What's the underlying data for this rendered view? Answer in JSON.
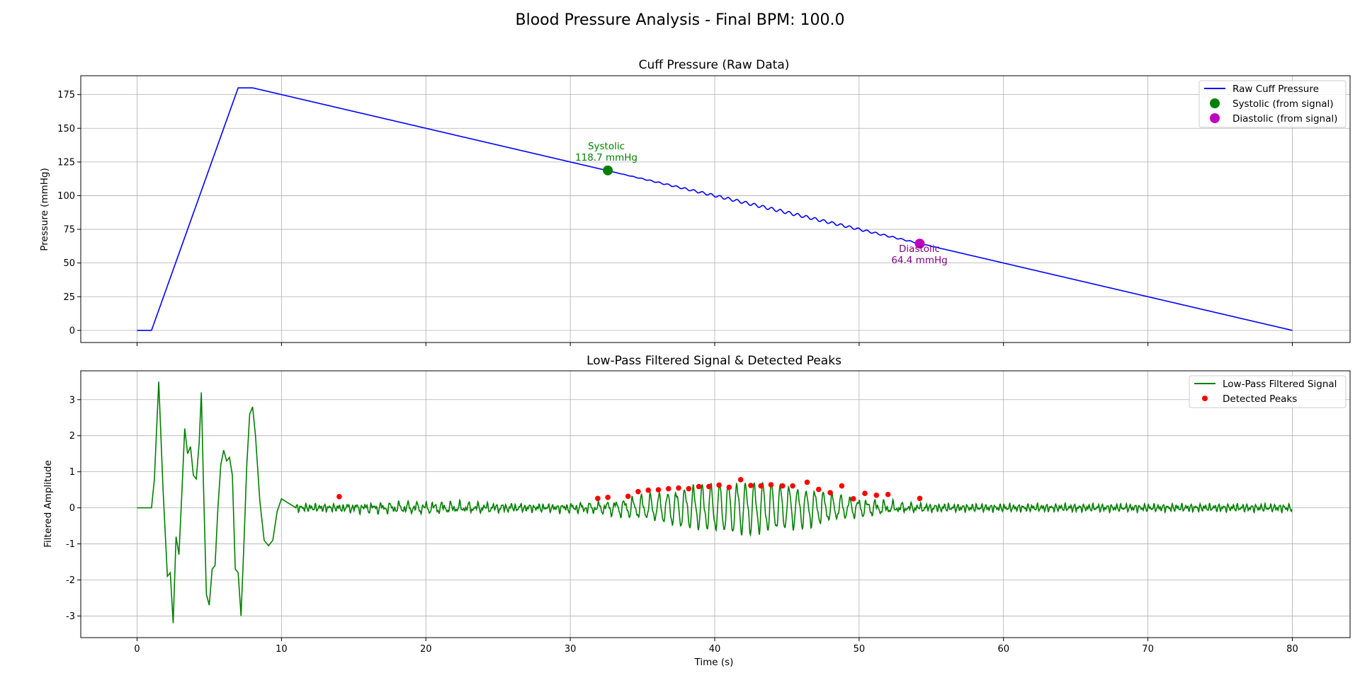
{
  "figure": {
    "title": "Blood Pressure Analysis - Final BPM: 100.0"
  },
  "chart_data": [
    {
      "type": "line",
      "title": "Cuff Pressure (Raw Data)",
      "xlabel": "",
      "ylabel": "Pressure (mmHg)",
      "xlim": [
        -3.9,
        84
      ],
      "ylim": [
        -9,
        189
      ],
      "xticks": [
        0,
        10,
        20,
        30,
        40,
        50,
        60,
        70,
        80
      ],
      "yticks": [
        0,
        25,
        50,
        75,
        100,
        125,
        150,
        175
      ],
      "grid": true,
      "legend": "upper right",
      "series": [
        {
          "name": "Raw Cuff Pressure",
          "color": "#0000ff",
          "x": [
            0,
            1,
            7,
            8,
            80
          ],
          "y": [
            0,
            0,
            180,
            180,
            0
          ],
          "oscillation_window_s": [
            33,
            56
          ]
        }
      ],
      "markers": [
        {
          "name": "Systolic (from signal)",
          "x": 32.6,
          "y": 118.7,
          "color": "#008000"
        },
        {
          "name": "Diastolic (from signal)",
          "x": 54.2,
          "y": 64.4,
          "color": "#bf00bf"
        }
      ],
      "annotations": [
        {
          "label": "Systolic",
          "value": "118.7 mmHg",
          "color": "#008000"
        },
        {
          "label": "Diastolic",
          "value": "64.4 mmHg",
          "color": "#800080"
        }
      ]
    },
    {
      "type": "line",
      "title": "Low-Pass Filtered Signal & Detected Peaks",
      "xlabel": "Time (s)",
      "ylabel": "Filtered Amplitude",
      "xlim": [
        -3.9,
        84
      ],
      "ylim": [
        -3.6,
        3.8
      ],
      "xticks": [
        0,
        10,
        20,
        30,
        40,
        50,
        60,
        70,
        80
      ],
      "yticks": [
        -3,
        -2,
        -1,
        0,
        1,
        2,
        3
      ],
      "grid": true,
      "legend": "upper right",
      "series": [
        {
          "name": "Low-Pass Filtered Signal",
          "color": "#008000",
          "transient_x": [
            0,
            1.0,
            1.2,
            1.5,
            1.8,
            2.1,
            2.3,
            2.5,
            2.7,
            2.9,
            3.1,
            3.3,
            3.5,
            3.7,
            3.9,
            4.1,
            4.3,
            4.45,
            4.6,
            4.8,
            5.0,
            5.2,
            5.4,
            5.6,
            5.8,
            6.0,
            6.2,
            6.4,
            6.6,
            6.8,
            7.0,
            7.2,
            7.4,
            7.6,
            7.8,
            8.0,
            8.2,
            8.5,
            8.8,
            9.1,
            9.4,
            9.7,
            10.0,
            10.4,
            11.0
          ],
          "transient_y": [
            0,
            0,
            0.8,
            3.5,
            0.5,
            -1.9,
            -1.8,
            -3.2,
            -0.8,
            -1.3,
            0.4,
            2.2,
            1.5,
            1.7,
            0.9,
            0.8,
            1.8,
            3.2,
            0.6,
            -2.4,
            -2.7,
            -1.7,
            -1.6,
            0.0,
            1.2,
            1.6,
            1.3,
            1.4,
            0.9,
            -1.7,
            -1.8,
            -3.0,
            -1.0,
            1.2,
            2.6,
            2.8,
            2.0,
            0.2,
            -0.9,
            -1.05,
            -0.9,
            -0.1,
            0.25,
            0.15,
            0.0
          ],
          "oscillation_window_s": [
            14,
            56
          ]
        }
      ],
      "markers": [
        {
          "name": "Detected Peaks",
          "color": "#ff0000",
          "x": [
            14.0,
            31.9,
            32.6,
            34.0,
            34.7,
            35.4,
            36.1,
            36.8,
            37.5,
            38.2,
            38.9,
            39.6,
            40.3,
            41.0,
            41.8,
            42.5,
            43.2,
            43.9,
            44.7,
            45.4,
            46.4,
            47.2,
            48.0,
            48.8,
            49.6,
            50.4,
            51.2,
            52.0,
            54.2
          ],
          "y": [
            0.31,
            0.26,
            0.29,
            0.32,
            0.45,
            0.49,
            0.5,
            0.53,
            0.55,
            0.53,
            0.59,
            0.59,
            0.63,
            0.57,
            0.78,
            0.62,
            0.61,
            0.64,
            0.61,
            0.61,
            0.71,
            0.51,
            0.42,
            0.61,
            0.25,
            0.4,
            0.35,
            0.37,
            0.26
          ]
        }
      ]
    }
  ]
}
